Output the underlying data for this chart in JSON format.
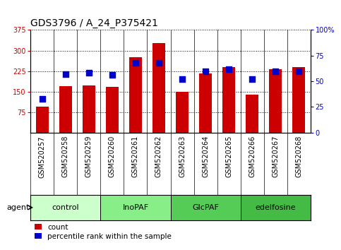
{
  "title": "GDS3796 / A_24_P375421",
  "categories": [
    "GSM520257",
    "GSM520258",
    "GSM520259",
    "GSM520260",
    "GSM520261",
    "GSM520262",
    "GSM520263",
    "GSM520264",
    "GSM520265",
    "GSM520266",
    "GSM520267",
    "GSM520268"
  ],
  "bar_values": [
    95,
    170,
    172,
    168,
    275,
    328,
    148,
    215,
    240,
    138,
    232,
    240
  ],
  "percentile_values": [
    33,
    57,
    58,
    56,
    68,
    68,
    52,
    60,
    62,
    52,
    60,
    60
  ],
  "bar_color": "#cc0000",
  "dot_color": "#0000cc",
  "ylim_left": [
    0,
    375
  ],
  "ylim_right": [
    0,
    100
  ],
  "yticks_left": [
    75,
    150,
    225,
    300,
    375
  ],
  "yticks_right": [
    0,
    25,
    50,
    75,
    100
  ],
  "ytick_labels_right": [
    "0",
    "25",
    "50",
    "75",
    "100%"
  ],
  "groups": [
    {
      "label": "control",
      "start": 0,
      "end": 3,
      "color": "#ccffcc"
    },
    {
      "label": "InoPAF",
      "start": 3,
      "end": 6,
      "color": "#88ee88"
    },
    {
      "label": "GlcPAF",
      "start": 6,
      "end": 9,
      "color": "#55cc55"
    },
    {
      "label": "edelfosine",
      "start": 9,
      "end": 12,
      "color": "#44bb44"
    }
  ],
  "bar_width": 0.55,
  "dot_size": 28,
  "title_fontsize": 10,
  "tick_fontsize": 7,
  "group_fontsize": 8,
  "legend_fontsize": 7.5
}
